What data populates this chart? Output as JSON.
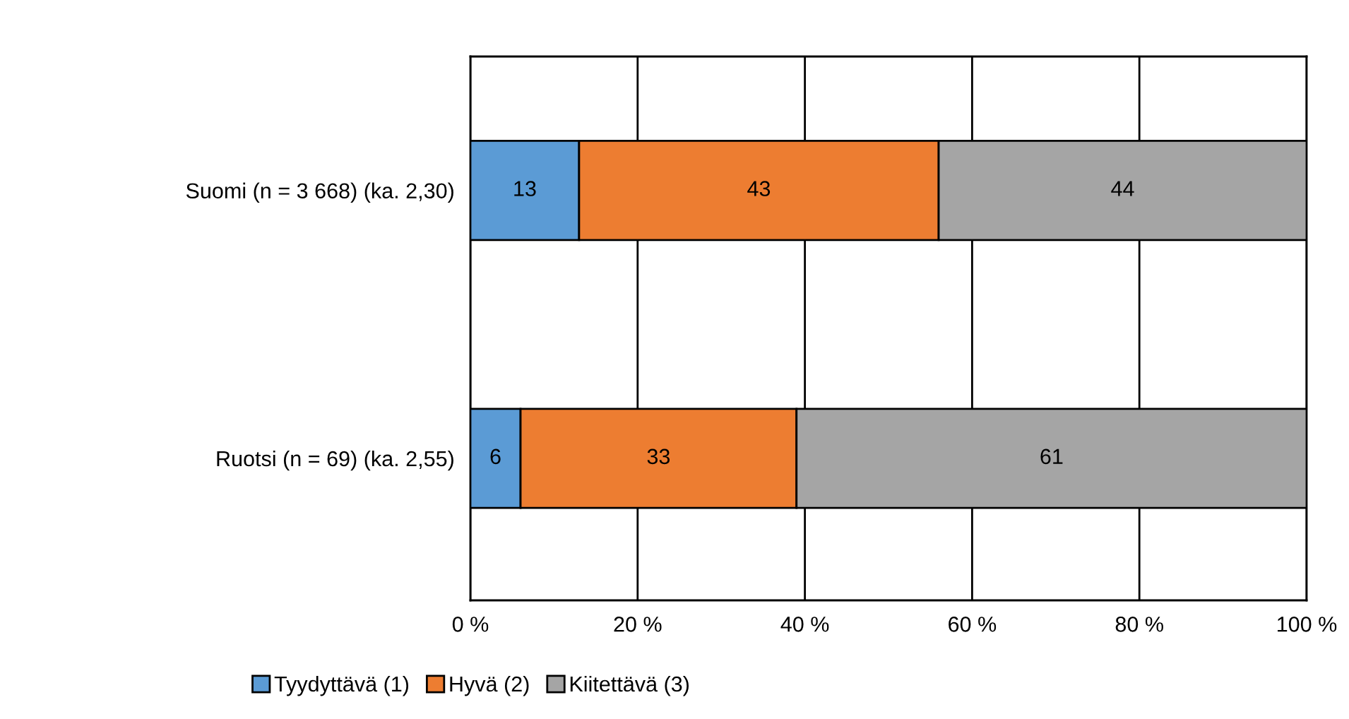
{
  "chart_data": {
    "type": "bar",
    "orientation": "horizontal",
    "stacked": true,
    "categories": [
      "Suomi (n = 3 668) (ka. 2,30)",
      "Ruotsi (n = 69) (ka. 2,55)"
    ],
    "series": [
      {
        "name": "Tyydyttävä (1)",
        "color": "#5b9bd5",
        "values": [
          13,
          6
        ]
      },
      {
        "name": "Hyvä (2)",
        "color": "#ed7d31",
        "values": [
          43,
          33
        ]
      },
      {
        "name": "Kiitettävä (3)",
        "color": "#a5a5a5",
        "values": [
          44,
          61
        ]
      }
    ],
    "xlim": [
      0,
      100
    ],
    "xticks": [
      {
        "value": 0,
        "label": "0 %"
      },
      {
        "value": 20,
        "label": "20 %"
      },
      {
        "value": 40,
        "label": "40 %"
      },
      {
        "value": 60,
        "label": "60 %"
      },
      {
        "value": 80,
        "label": "80 %"
      },
      {
        "value": 100,
        "label": "100 %"
      }
    ],
    "grid": "x",
    "data_labels": true,
    "legend": "bottom"
  }
}
